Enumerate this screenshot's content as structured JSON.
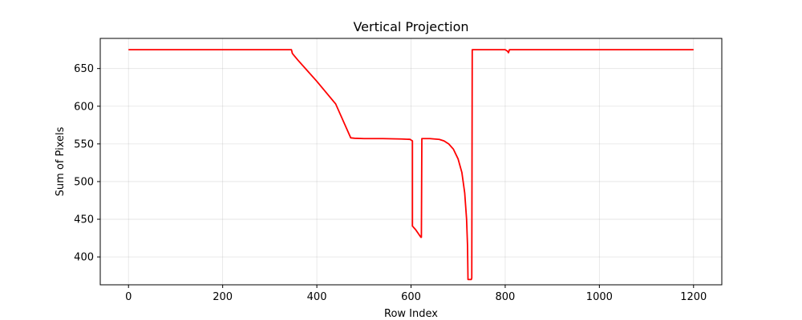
{
  "chart_data": {
    "type": "line",
    "title": "Vertical Projection",
    "xlabel": "Row Index",
    "ylabel": "Sum of Pixels",
    "xlim": [
      -60,
      1260
    ],
    "ylim": [
      363,
      690
    ],
    "xticks": [
      0,
      200,
      400,
      600,
      800,
      1000,
      1200
    ],
    "yticks": [
      400,
      450,
      500,
      550,
      600,
      650
    ],
    "grid": true,
    "legend": "none",
    "series": [
      {
        "color": "#ff0000",
        "points": [
          [
            0,
            675
          ],
          [
            100,
            675
          ],
          [
            200,
            675
          ],
          [
            300,
            675
          ],
          [
            346,
            675
          ],
          [
            348,
            670
          ],
          [
            352,
            667
          ],
          [
            360,
            661
          ],
          [
            400,
            633
          ],
          [
            440,
            603
          ],
          [
            472,
            558
          ],
          [
            480,
            557.5
          ],
          [
            500,
            557
          ],
          [
            540,
            557
          ],
          [
            580,
            556.5
          ],
          [
            598,
            556
          ],
          [
            603,
            554
          ],
          [
            603,
            441
          ],
          [
            610,
            436
          ],
          [
            621,
            426
          ],
          [
            622,
            426
          ],
          [
            623,
            557
          ],
          [
            640,
            557
          ],
          [
            660,
            556
          ],
          [
            670,
            554
          ],
          [
            680,
            550
          ],
          [
            690,
            543
          ],
          [
            700,
            530
          ],
          [
            708,
            512
          ],
          [
            714,
            485
          ],
          [
            718,
            450
          ],
          [
            720,
            415
          ],
          [
            721,
            370
          ],
          [
            728,
            370
          ],
          [
            729,
            372
          ],
          [
            730,
            675
          ],
          [
            760,
            675
          ],
          [
            800,
            675
          ],
          [
            805,
            673
          ],
          [
            807,
            671
          ],
          [
            809,
            675
          ],
          [
            850,
            675
          ],
          [
            900,
            675
          ],
          [
            1000,
            675
          ],
          [
            1100,
            675
          ],
          [
            1200,
            675
          ]
        ]
      }
    ]
  }
}
